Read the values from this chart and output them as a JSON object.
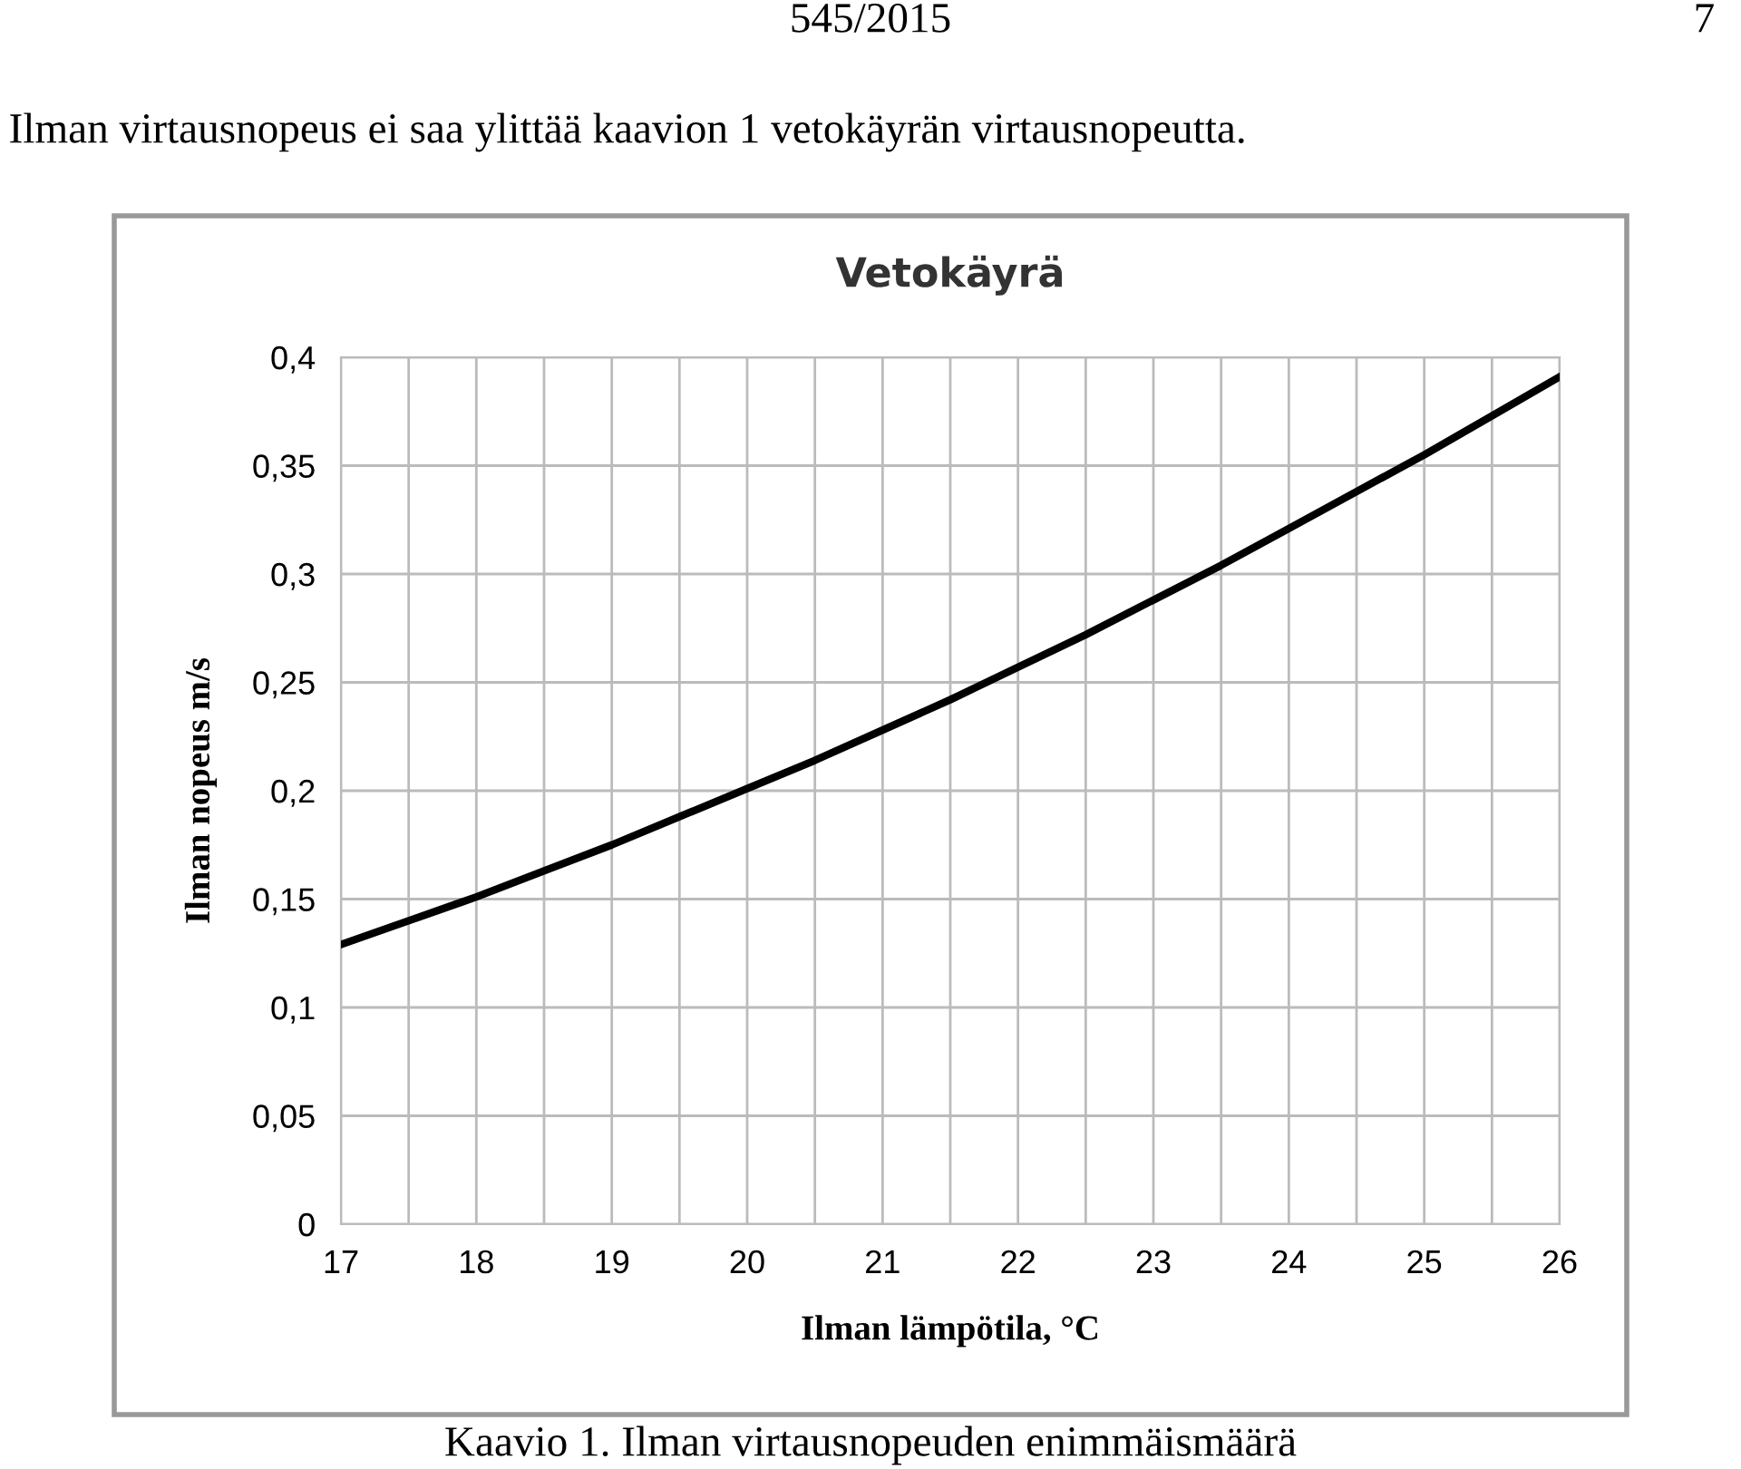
{
  "chart_data": {
    "type": "line",
    "title": "Vetokäyrä",
    "xlabel": "Ilman lämpötila, °C",
    "ylabel": "Ilman nopeus m/s",
    "x": [
      17,
      17.5,
      18,
      18.5,
      19,
      19.5,
      20,
      20.5,
      21,
      21.5,
      22,
      22.5,
      23,
      23.5,
      24,
      24.5,
      25,
      25.5,
      26
    ],
    "series": [
      {
        "color": "#000000",
        "values": [
          0.129,
          0.14,
          0.151,
          0.163,
          0.175,
          0.188,
          0.201,
          0.214,
          0.228,
          0.242,
          0.257,
          0.272,
          0.288,
          0.304,
          0.321,
          0.338,
          0.355,
          0.373,
          0.391
        ]
      }
    ],
    "xlim": [
      17,
      26
    ],
    "xticks": [
      17,
      {
        "value": 17.5,
        "label": null
      },
      18,
      {
        "value": 18.5,
        "label": null
      },
      19,
      {
        "value": 19.5,
        "label": null
      },
      20,
      {
        "value": 20.5,
        "label": null
      },
      21,
      {
        "value": 21.5,
        "label": null
      },
      22,
      {
        "value": 22.5,
        "label": null
      },
      23,
      {
        "value": 23.5,
        "label": null
      },
      24,
      {
        "value": 24.5,
        "label": null
      },
      25,
      {
        "value": 25.5,
        "label": null
      },
      26
    ],
    "ylim": [
      0,
      0.4
    ],
    "yticks": [
      0,
      {
        "value": 0.05,
        "label": "0,05"
      },
      {
        "value": 0.1,
        "label": "0,1"
      },
      {
        "value": 0.15,
        "label": "0,15"
      },
      {
        "value": 0.2,
        "label": "0,2"
      },
      {
        "value": 0.25,
        "label": "0,25"
      },
      {
        "value": 0.3,
        "label": "0,3"
      },
      {
        "value": 0.35,
        "label": "0,35"
      },
      {
        "value": 0.4,
        "label": "0,4"
      }
    ],
    "grid": true,
    "legend": false,
    "marker": "none",
    "line_style": "solid",
    "annotations": [
      "545/2015",
      "7",
      "Ilman virtausnopeus ei saa ylittää kaavion 1 vetokäyrän virtausnopeutta.",
      "Kaavio 1. Ilman virtausnopeuden enimmäismäärä"
    ]
  }
}
